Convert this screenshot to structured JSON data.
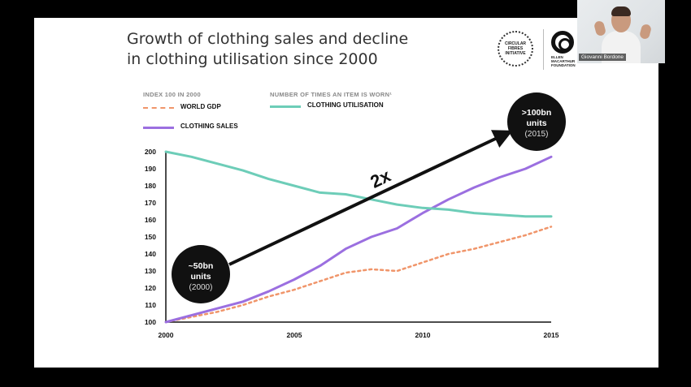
{
  "slide": {
    "title_line1": "Growth of clothing sales and decline",
    "title_line2": "in clothing utilisation since 2000"
  },
  "logos": {
    "cti_text": "CIRCULAR\nFIBRES\nINITIATIVE",
    "emf_text": "ELLEN\nMACARTHUR\nFOUNDATION"
  },
  "legend": {
    "left_header": "INDEX 100 IN 2000",
    "right_header": "NUMBER OF TIMES AN ITEM IS WORN¹",
    "world_gdp": "WORLD GDP",
    "clothing_sales": "CLOTHING SALES",
    "clothing_utilisation": "CLOTHING UTILISATION"
  },
  "annotations": {
    "start_line1": "~50bn",
    "start_line2": "units",
    "start_line3": "(2000)",
    "end_line1": ">100bn",
    "end_line2": "units",
    "end_line3": "(2015)",
    "arrow_label": "2x"
  },
  "colors": {
    "world_gdp": "#f0956a",
    "clothing_sales": "#9b6fe0",
    "clothing_utilisation": "#6dcdb8",
    "arrow": "#111111"
  },
  "webcam": {
    "name": "Giovanni Bordone"
  },
  "chart_data": {
    "type": "line",
    "title": "Growth of clothing sales and decline in clothing utilisation since 2000",
    "xlabel": "",
    "ylabel": "",
    "xlim": [
      2000,
      2015
    ],
    "ylim": [
      100,
      200
    ],
    "x_ticks": [
      2000,
      2005,
      2010,
      2015
    ],
    "y_ticks": [
      100,
      110,
      120,
      130,
      140,
      150,
      160,
      170,
      180,
      190,
      200
    ],
    "grid": false,
    "legend_position": "top-left",
    "series": [
      {
        "name": "WORLD GDP",
        "style": "dashed",
        "color": "#f0956a",
        "x": [
          2000,
          2001,
          2002,
          2003,
          2004,
          2005,
          2006,
          2007,
          2008,
          2009,
          2010,
          2011,
          2012,
          2013,
          2014,
          2015
        ],
        "y": [
          100,
          103,
          106,
          110,
          115,
          119,
          124,
          129,
          131,
          130,
          135,
          140,
          143,
          147,
          151,
          156
        ]
      },
      {
        "name": "CLOTHING SALES",
        "style": "solid",
        "color": "#9b6fe0",
        "x": [
          2000,
          2001,
          2002,
          2003,
          2004,
          2005,
          2006,
          2007,
          2008,
          2009,
          2010,
          2011,
          2012,
          2013,
          2014,
          2015
        ],
        "y": [
          100,
          104,
          108,
          112,
          118,
          125,
          133,
          143,
          150,
          155,
          164,
          172,
          179,
          185,
          190,
          197
        ]
      },
      {
        "name": "CLOTHING UTILISATION",
        "style": "solid",
        "color": "#6dcdb8",
        "x": [
          2000,
          2001,
          2002,
          2003,
          2004,
          2005,
          2006,
          2007,
          2008,
          2009,
          2010,
          2011,
          2012,
          2013,
          2014,
          2015
        ],
        "y": [
          200,
          197,
          193,
          189,
          184,
          180,
          176,
          175,
          172,
          169,
          167,
          166,
          164,
          163,
          162,
          162
        ]
      }
    ]
  }
}
